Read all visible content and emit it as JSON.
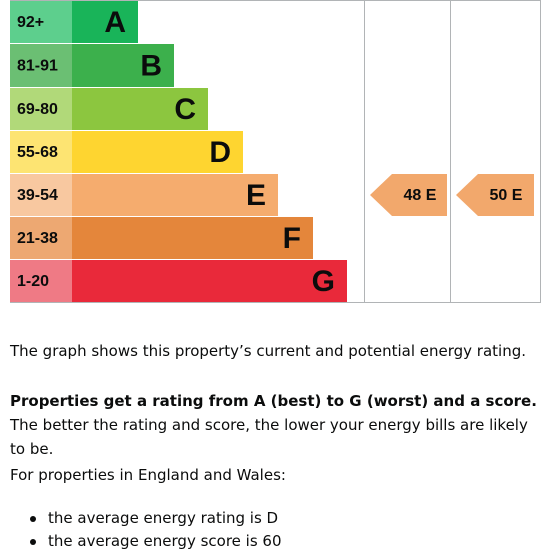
{
  "bands": [
    {
      "range": "92+",
      "letter": "A"
    },
    {
      "range": "81-91",
      "letter": "B"
    },
    {
      "range": "69-80",
      "letter": "C"
    },
    {
      "range": "55-68",
      "letter": "D"
    },
    {
      "range": "39-54",
      "letter": "E"
    },
    {
      "range": "21-38",
      "letter": "F"
    },
    {
      "range": "1-20",
      "letter": "G"
    }
  ],
  "current": "48 E",
  "potential": "50 E",
  "text": {
    "p1": "The graph shows this property’s current and potential energy rating.",
    "p2_bold": "Properties get a rating from A (best) to G (worst) and a score.",
    "p2_rest": "The better the rating and score, the lower your energy bills are likely to be.",
    "p3": "For properties in England and Wales:",
    "bullets": [
      "the average energy rating is D",
      "the average energy score is 60"
    ]
  }
}
